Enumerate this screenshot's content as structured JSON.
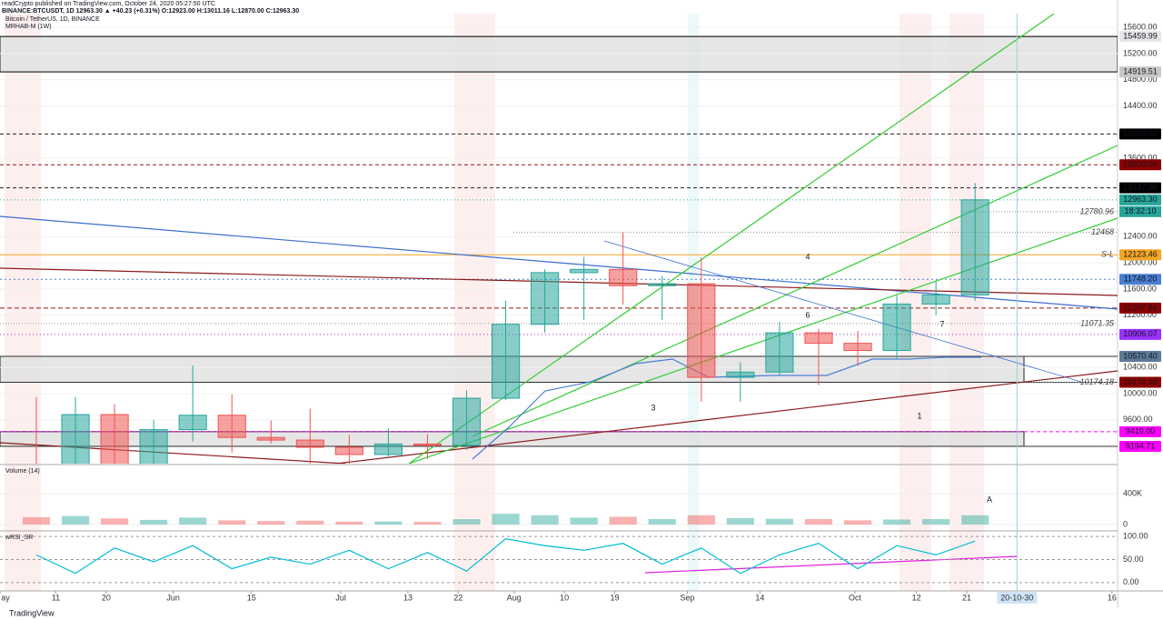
{
  "chart_data": {
    "type": "candlestick",
    "publisher": "readCrypto published on TradingView.com, October 24, 2020 05:27:50 UTC",
    "ticker_line": "BINANCE:BTCUSDT, 1D  12963.30  ▲ +40.23 (+0.31%)  O:12923.00 H:13011.16 L:12870.00 C:12963.30",
    "title": "Bitcoin / TetherUS, 1D, BINANCE",
    "indicator": "MRHAB-M (1W)",
    "x": [
      "2020-05-04",
      "2020-05-11",
      "2020-05-18",
      "2020-05-25",
      "2020-06-01",
      "2020-06-08",
      "2020-06-15",
      "2020-06-22",
      "2020-06-29",
      "2020-07-06",
      "2020-07-13",
      "2020-07-20",
      "2020-07-27",
      "2020-08-03",
      "2020-08-10",
      "2020-08-17",
      "2020-08-24",
      "2020-08-31",
      "2020-09-07",
      "2020-09-14",
      "2020-09-21",
      "2020-09-28",
      "2020-10-05",
      "2020-10-12",
      "2020-10-19"
    ],
    "open": [
      8900,
      8720,
      9680,
      8900,
      9450,
      9670,
      9330,
      9290,
      9180,
      9070,
      9230,
      9210,
      9930,
      11060,
      11850,
      11900,
      11650,
      11680,
      10250,
      10330,
      10930,
      10770,
      10660,
      11370,
      11510
    ],
    "high": [
      9950,
      9950,
      9840,
      9600,
      10430,
      9990,
      9590,
      9770,
      9370,
      9470,
      9380,
      10050,
      11420,
      11900,
      12090,
      12470,
      11800,
      12080,
      10480,
      11100,
      10990,
      10960,
      11500,
      11720,
      13220
    ],
    "low": [
      8100,
      8200,
      8800,
      8650,
      9270,
      9100,
      9240,
      8830,
      8900,
      9040,
      9000,
      9140,
      9900,
      10930,
      11130,
      11360,
      11130,
      9880,
      9880,
      10270,
      10130,
      10430,
      10530,
      11200,
      11420
    ],
    "close": [
      8720,
      9680,
      8900,
      9450,
      9670,
      9330,
      9290,
      9180,
      9070,
      9230,
      9210,
      9930,
      11060,
      11850,
      11900,
      11650,
      11680,
      10250,
      10330,
      10930,
      10770,
      10660,
      11370,
      11510,
      12963.3
    ],
    "up_color": "#26a69a",
    "down_color": "#ef5350",
    "xlim": [
      "2020-05-01",
      "2020-11-17"
    ],
    "xticks": [
      {
        "value": "2020-05-01",
        "label": "ay"
      },
      {
        "value": "2020-05-11",
        "label": "11"
      },
      {
        "value": "2020-05-20",
        "label": "20"
      },
      {
        "value": "2020-06-01",
        "label": "Jun"
      },
      {
        "value": "2020-06-15",
        "label": "15"
      },
      {
        "value": "2020-07-01",
        "label": "Jul"
      },
      {
        "value": "2020-07-13",
        "label": "13"
      },
      {
        "value": "2020-07-22",
        "label": "22"
      },
      {
        "value": "2020-08-01",
        "label": "Aug"
      },
      {
        "value": "2020-08-10",
        "label": "10"
      },
      {
        "value": "2020-08-19",
        "label": "19"
      },
      {
        "value": "2020-09-01",
        "label": "Sep"
      },
      {
        "value": "2020-09-14",
        "label": "14"
      },
      {
        "value": "2020-10-01",
        "label": "Oct"
      },
      {
        "value": "2020-10-12",
        "label": "12"
      },
      {
        "value": "2020-10-21",
        "label": "21"
      },
      {
        "value": "2020-11-16",
        "label": "16"
      }
    ],
    "cursor_date": {
      "value": "2020-10-30",
      "label": "20-10-30"
    },
    "ylim": [
      8930,
      15810
    ],
    "yticks": [
      {
        "value": 9600,
        "label": "9600.00"
      },
      {
        "value": 10000,
        "label": "10000.00"
      },
      {
        "value": 10400,
        "label": "10400.00"
      },
      {
        "value": 11200,
        "label": "11200.00"
      },
      {
        "value": 11600,
        "label": "11600.00"
      },
      {
        "value": 12000,
        "label": "12000.00"
      },
      {
        "value": 12400,
        "label": "12400.00"
      },
      {
        "value": 13600,
        "label": "13600.00"
      },
      {
        "value": 14400,
        "label": "14400.00"
      },
      {
        "value": 14800,
        "label": "14800.00"
      },
      {
        "value": 15200,
        "label": "15200.00"
      },
      {
        "value": 15600,
        "label": "15600.00"
      }
    ],
    "grid": true,
    "levels": [
      {
        "value": 15459.99,
        "label": "15459.99",
        "color": "#222222",
        "bg": "#e6e6e6",
        "fg": "#000000",
        "dash": "none"
      },
      {
        "value": 14919.51,
        "label": "14919.51",
        "color": "#222222",
        "bg": "#c8c8c8",
        "fg": "#000000",
        "dash": "none"
      },
      {
        "value": 13970,
        "label": "13970.00",
        "color": "#222222",
        "bg": "#000000",
        "fg": "#ffffff",
        "dash": "4 3"
      },
      {
        "value": 13500,
        "label": "13500.00",
        "color": "#8b1a1a",
        "bg": "#8b0000",
        "fg": "#ffffff",
        "dash": "4 3"
      },
      {
        "value": 13147.08,
        "label": "13147.08",
        "color": "#222222",
        "bg": "#000000",
        "fg": "#ffffff",
        "dash": "4 3"
      },
      {
        "value": 12963.3,
        "label": "12963.30",
        "color": "#26a69a",
        "bg": "#26a69a",
        "fg": "#ffffff",
        "dash": "1 3"
      },
      {
        "value": 12123.46,
        "label": "12123.46",
        "color": "#f5a623",
        "bg": "#f5a623",
        "fg": "#000000",
        "dash": "none"
      },
      {
        "value": 11748.2,
        "label": "11748.20",
        "color": "#4a7fd4",
        "bg": "#4a7fd4",
        "fg": "#ffffff",
        "dash": "2 3"
      },
      {
        "value": 11307.84,
        "label": "11307.84",
        "color": "#8b1a1a",
        "bg": "#8b0000",
        "fg": "#ffffff",
        "dash": "5 3"
      },
      {
        "value": 10906.07,
        "label": "10906.07",
        "color": "#9c27b0",
        "bg": "#9b30ff",
        "fg": "#ffffff",
        "dash": "1 3"
      },
      {
        "value": 10570.4,
        "label": "10570.40",
        "color": "#333333",
        "bg": "#5d7a99",
        "fg": "#ffffff",
        "dash": "none"
      },
      {
        "value": 10174.18,
        "label": "10174.18",
        "color": "#333333",
        "bg": "#8b0000",
        "fg": "#ffffff",
        "dash": "none"
      },
      {
        "value": 9419,
        "label": "9419.00",
        "color": "#ff00ff",
        "bg": "#ff00ff",
        "fg": "#ffffff",
        "dash": "4 3"
      },
      {
        "value": 9194.71,
        "label": "9194.71",
        "color": "#333333",
        "bg": "#ff00ff",
        "fg": "#ffffff",
        "dash": "none"
      }
    ],
    "countdown": "18:32:10",
    "chart_labels": [
      12780.96,
      12468,
      11071.35,
      10174.18
    ],
    "sl_label": "S-L",
    "annotations": [
      "4",
      "6",
      "3",
      "1",
      "7",
      "A"
    ],
    "volume": {
      "title": "Volume (14)",
      "ylim": [
        -59000,
        765000
      ],
      "yticks": [
        {
          "value": 400000,
          "label": "400K"
        },
        0
      ],
      "values": [
        95000,
        110000,
        80000,
        60000,
        90000,
        55000,
        45000,
        50000,
        38000,
        40000,
        35000,
        70000,
        140000,
        120000,
        90000,
        100000,
        70000,
        120000,
        85000,
        75000,
        70000,
        55000,
        65000,
        70000,
        120000
      ]
    },
    "rsi": {
      "title": "wRSI_SR",
      "ylim": [
        -18,
        108
      ],
      "yticks": [
        {
          "value": 100,
          "label": "100.00"
        },
        {
          "value": 50,
          "label": "50.00"
        },
        {
          "value": 0,
          "label": "0.00"
        }
      ],
      "values": [
        60,
        20,
        75,
        45,
        80,
        30,
        55,
        40,
        70,
        30,
        65,
        25,
        95,
        80,
        70,
        85,
        40,
        75,
        20,
        60,
        85,
        30,
        80,
        60,
        90
      ]
    },
    "footer": "TradingView"
  }
}
